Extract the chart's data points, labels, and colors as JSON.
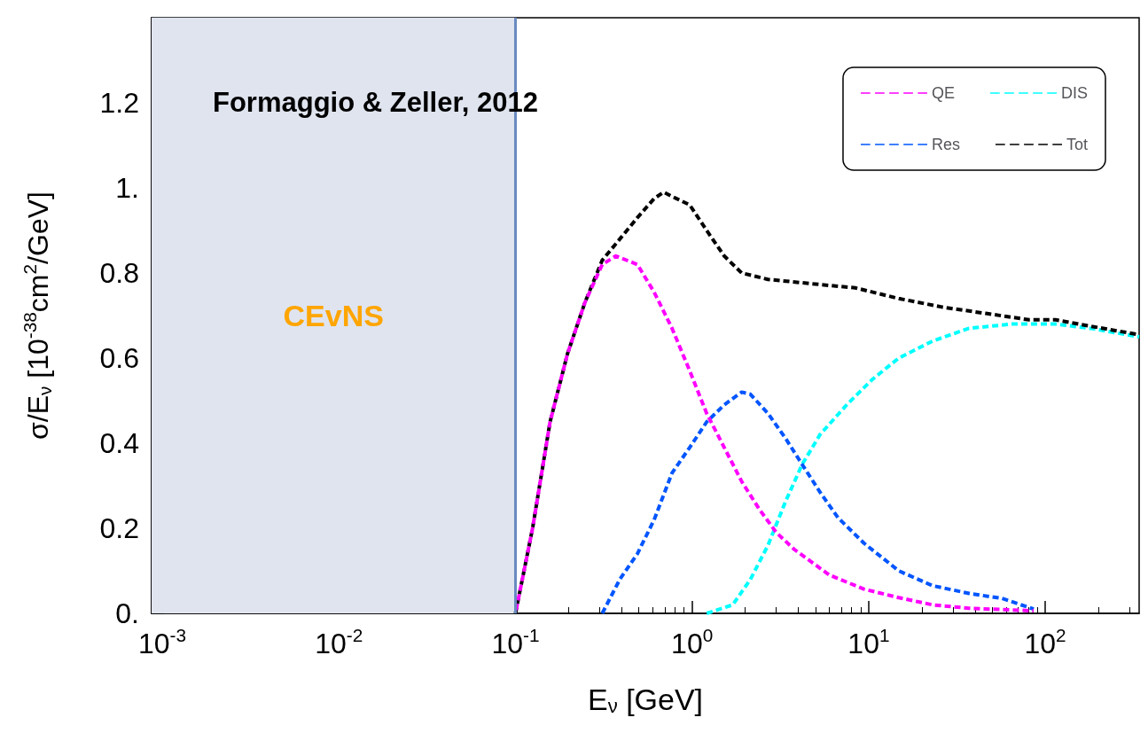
{
  "chart_data": {
    "type": "line",
    "xlabel": "E$_{ν}$ [GeV]",
    "ylabel": "σ/E$_{ν}$ [10$^{-38}$cm$^{2}$/GeV]",
    "annotations": [
      "Formaggio & Zeller, 2012"
    ],
    "log": "x",
    "xlim": [
      0.00087,
      340
    ],
    "xticks": [
      {
        "value": 0.001,
        "label": "10$^{-3}$"
      },
      {
        "value": 0.01,
        "label": "10$^{-2}$"
      },
      {
        "value": 0.1,
        "label": "10$^{-1}$"
      },
      {
        "value": 1,
        "label": "10$^{0}$"
      },
      {
        "value": 10,
        "label": "10$^{1}$"
      },
      {
        "value": 100,
        "label": "10$^{2}$"
      }
    ],
    "ylim": [
      0,
      1.4
    ],
    "yticks": [
      {
        "value": 0,
        "label": "0."
      },
      0.2,
      0.4,
      0.6,
      0.8,
      {
        "value": 1,
        "label": "1."
      },
      1.2
    ],
    "grid": false,
    "legend": "top right",
    "line_style": "dashed",
    "marker": "none",
    "bands": [
      {
        "axis": "x",
        "from": 0.00087,
        "to": 0.1,
        "label": "CEvNS",
        "color": "#dfe4ef"
      }
    ],
    "ref_lines": [
      {
        "axis": "x",
        "value": 0.1,
        "color": "#6a8ac0"
      }
    ],
    "series": [
      {
        "name": "QE",
        "color": "#ff00ff",
        "x": [
          0.1,
          0.125,
          0.157,
          0.197,
          0.247,
          0.31,
          0.37,
          0.49,
          0.61,
          0.77,
          0.97,
          1.21,
          1.52,
          1.91,
          2.4,
          3.0,
          3.8,
          6.0,
          9.4,
          14.8,
          23,
          37,
          65,
          86
        ],
        "values": [
          0,
          0.2,
          0.45,
          0.61,
          0.73,
          0.82,
          0.84,
          0.82,
          0.755,
          0.67,
          0.57,
          0.47,
          0.39,
          0.31,
          0.245,
          0.19,
          0.15,
          0.09,
          0.057,
          0.037,
          0.02,
          0.012,
          0.008,
          0.006
        ]
      },
      {
        "name": "DIS",
        "color": "#00ffff",
        "x": [
          1.21,
          1.7,
          2.14,
          2.69,
          3.4,
          4.2,
          5.3,
          7.5,
          10.5,
          14.8,
          23,
          37,
          65,
          114,
          180,
          340
        ],
        "values": [
          0,
          0.02,
          0.08,
          0.16,
          0.265,
          0.35,
          0.42,
          0.49,
          0.55,
          0.6,
          0.64,
          0.67,
          0.68,
          0.68,
          0.67,
          0.65
        ]
      },
      {
        "name": "Res",
        "color": "#0055ff",
        "x": [
          0.31,
          0.39,
          0.49,
          0.61,
          0.77,
          0.97,
          1.21,
          1.52,
          1.91,
          2.14,
          2.69,
          3.4,
          4.2,
          5.3,
          6.7,
          9.4,
          14.8,
          23,
          37,
          57,
          86
        ],
        "values": [
          0,
          0.08,
          0.14,
          0.22,
          0.33,
          0.39,
          0.45,
          0.49,
          0.52,
          0.515,
          0.47,
          0.41,
          0.35,
          0.285,
          0.225,
          0.165,
          0.1,
          0.065,
          0.047,
          0.035,
          0.01
        ]
      },
      {
        "name": "Tot",
        "color": "#000000",
        "x": [
          0.1,
          0.125,
          0.157,
          0.197,
          0.247,
          0.31,
          0.39,
          0.49,
          0.61,
          0.69,
          0.77,
          0.97,
          1.21,
          1.52,
          1.91,
          2.69,
          4.7,
          8.4,
          14.8,
          26,
          46,
          81,
          114,
          180,
          340
        ],
        "values": [
          0,
          0.2,
          0.45,
          0.61,
          0.73,
          0.83,
          0.88,
          0.93,
          0.975,
          0.99,
          0.98,
          0.96,
          0.9,
          0.84,
          0.8,
          0.785,
          0.775,
          0.765,
          0.74,
          0.72,
          0.705,
          0.69,
          0.69,
          0.675,
          0.655
        ]
      }
    ]
  }
}
